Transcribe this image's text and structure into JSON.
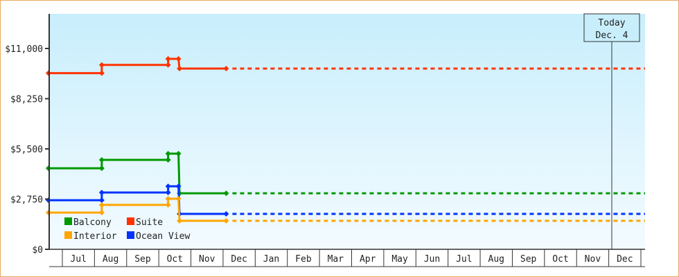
{
  "chart_data": {
    "type": "line",
    "step": true,
    "x_axis_ticks": [
      "Jul",
      "Aug",
      "Sep",
      "Oct",
      "Nov",
      "Dec",
      "Jan",
      "Feb",
      "Mar",
      "Apr",
      "May",
      "Jun",
      "Jul",
      "Aug",
      "Sep",
      "Oct",
      "Nov",
      "Dec"
    ],
    "y_axis_ticks": [
      "$0",
      "$2,750",
      "$5,500",
      "$8,250",
      "$11,000"
    ],
    "ylim": [
      0,
      12500
    ],
    "grid": false,
    "legend_position": "bottom-left",
    "today_marker": {
      "line1": "Today",
      "line2": "Dec. 4"
    },
    "x_points": [
      "Jun 18",
      "Aug 8",
      "Aug 8",
      "Oct 10",
      "Oct 10",
      "Oct 20",
      "Oct 21",
      "Dec 4"
    ],
    "series": [
      {
        "name": "Suite",
        "color": "#ff3300",
        "values": [
          9650,
          9650,
          10100,
          10100,
          10430,
          10430,
          9900,
          9900
        ]
      },
      {
        "name": "Balcony",
        "color": "#009900",
        "values": [
          4440,
          4440,
          4900,
          4900,
          5240,
          5240,
          3070,
          3070
        ]
      },
      {
        "name": "Ocean View",
        "color": "#0033ff",
        "values": [
          2690,
          2690,
          3110,
          3110,
          3450,
          3450,
          1940,
          1940
        ]
      },
      {
        "name": "Interior",
        "color": "#ffa500",
        "values": [
          2010,
          2010,
          2430,
          2430,
          2770,
          2770,
          1560,
          1560
        ]
      }
    ],
    "legend_order": [
      "Balcony",
      "Suite",
      "Interior",
      "Ocean View"
    ],
    "projection_style": "dashed after today"
  }
}
